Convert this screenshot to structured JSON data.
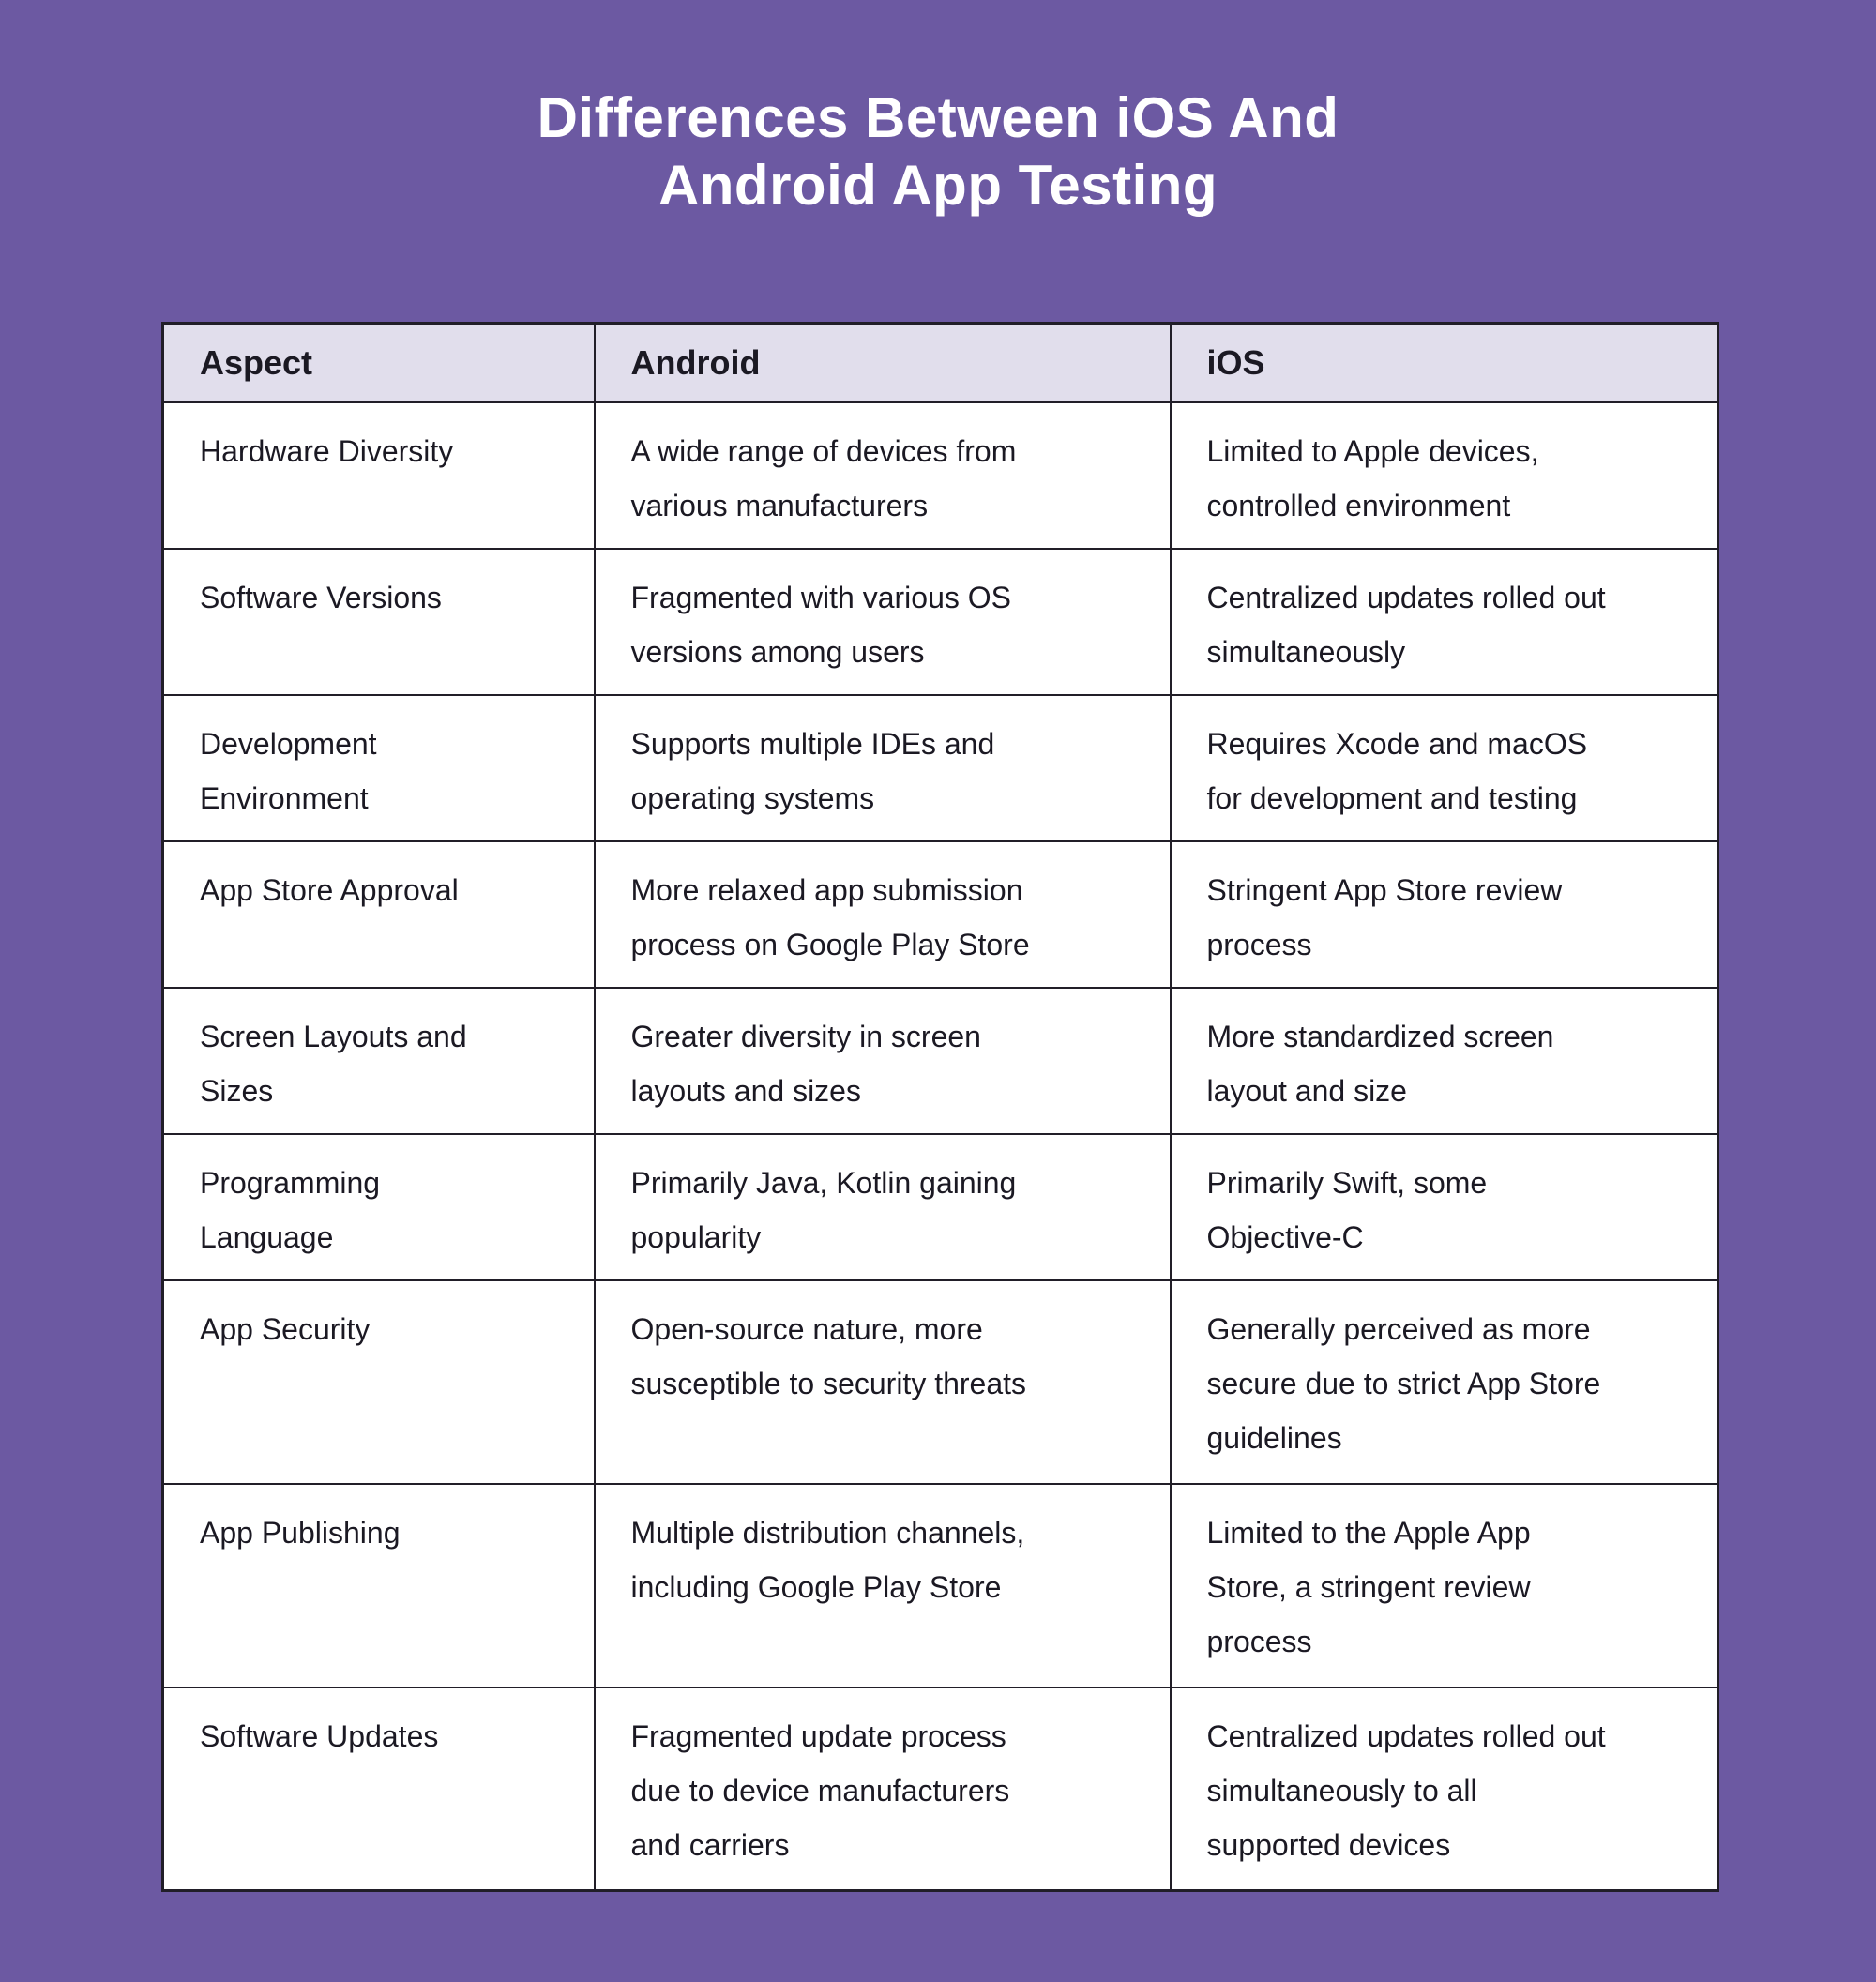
{
  "page": {
    "title": "Differences Between iOS And\nAndroid App Testing",
    "background_color": "#6C59A2",
    "title_color": "#FFFFFF"
  },
  "table": {
    "header_background": "#E1DEEC",
    "row_background": "#FFFFFF",
    "border_color": "#211E28",
    "text_color": "#1B1923",
    "columns": [
      "Aspect",
      "Android",
      "iOS"
    ],
    "rows": [
      {
        "aspect": "Hardware Diversity",
        "android": "A wide range of devices from\nvarious manufacturers",
        "ios": "Limited to Apple devices,\ncontrolled environment"
      },
      {
        "aspect": "Software Versions",
        "android": "Fragmented with various OS\nversions among users",
        "ios": "Centralized updates rolled out\nsimultaneously"
      },
      {
        "aspect": "Development\nEnvironment",
        "android": "Supports multiple IDEs and\noperating systems",
        "ios": "Requires Xcode and macOS\nfor development and testing"
      },
      {
        "aspect": "App Store Approval",
        "android": "More relaxed app submission\nprocess on Google Play Store",
        "ios": "Stringent App Store review\nprocess"
      },
      {
        "aspect": "Screen Layouts and\nSizes",
        "android": "Greater diversity in screen\nlayouts and sizes",
        "ios": "More standardized screen\nlayout and size"
      },
      {
        "aspect": "Programming\nLanguage",
        "android": "Primarily Java, Kotlin gaining\npopularity",
        "ios": "Primarily Swift, some\nObjective-C"
      },
      {
        "aspect": "App Security",
        "android": "Open-source nature, more\nsusceptible to security threats",
        "ios": "Generally perceived as more\nsecure due to strict App Store\nguidelines"
      },
      {
        "aspect": "App Publishing",
        "android": "Multiple distribution channels,\nincluding Google Play Store",
        "ios": "Limited to the Apple App\nStore, a stringent review\nprocess"
      },
      {
        "aspect": "Software Updates",
        "android": "Fragmented update process\ndue to device manufacturers\nand carriers",
        "ios": "Centralized updates rolled out\nsimultaneously to all\nsupported devices"
      }
    ]
  }
}
